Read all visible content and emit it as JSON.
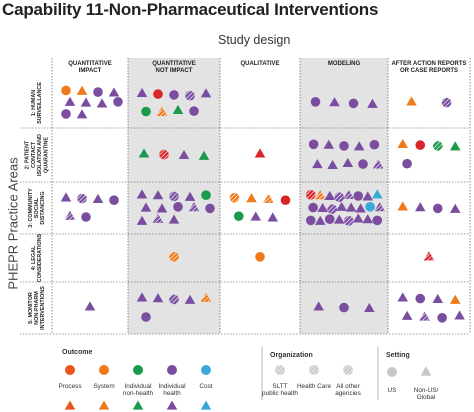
{
  "title": "Capability 11-Non-Pharmaceutical Interventions",
  "subtitle": "Study design",
  "side_label": "PHEPR Practice Areas",
  "columns": [
    {
      "line1": "QUANTITATIVE",
      "line2": "IMPACT"
    },
    {
      "line1": "QUANTITATIVE",
      "line2": "NOT IMPACT"
    },
    {
      "line1": "QUALITATIVE",
      "line2": ""
    },
    {
      "line1": "MODELING",
      "line2": ""
    },
    {
      "line1": "AFTER ACTION REPORTS",
      "line2": "OR CASE REPORTS"
    }
  ],
  "rows": [
    {
      "lines": [
        "1: HUMAN",
        "SURVEILLANCE"
      ]
    },
    {
      "lines": [
        "2: PATIENT",
        "CONTACT",
        "ISOLATION AND",
        "QUARANTINE"
      ]
    },
    {
      "lines": [
        "3: COMMUNITY",
        "SOCIAL",
        "DISTANCING"
      ]
    },
    {
      "lines": [
        "4: LEGAL",
        "CONSIDERATIONS"
      ]
    },
    {
      "lines": [
        "5: MONITOR",
        "NON-PHARM",
        "INTERVENTIONS"
      ]
    }
  ],
  "legend": {
    "outcome_title": "Outcome",
    "outcomes": [
      {
        "label1": "Process",
        "label2": "",
        "color": "#e8551f"
      },
      {
        "label1": "System",
        "label2": "",
        "color": "#f07a1a"
      },
      {
        "label1": "Individual",
        "label2": "non-health",
        "color": "#1a9a4a"
      },
      {
        "label1": "Individual",
        "label2": "health",
        "color": "#7a4da0"
      },
      {
        "label1": "Cost",
        "label2": "",
        "color": "#3aa8d8"
      }
    ],
    "organization_title": "Organization",
    "organizations": [
      {
        "label1": "SLTT",
        "label2": "public health"
      },
      {
        "label1": "Health Care",
        "label2": ""
      },
      {
        "label1": "All other",
        "label2": "agencies"
      }
    ],
    "setting_title": "Setting",
    "settings": [
      {
        "label1": "US",
        "label2": ""
      },
      {
        "label1": "Non-US/",
        "label2": "Global"
      }
    ]
  },
  "colors": {
    "purple": "#7a4da0",
    "orange": "#f07a1a",
    "red": "#d9252a",
    "green": "#1a9a4a",
    "blue": "#3aa8d8",
    "gray": "#c8c8c8",
    "shaded_column": "#e3e3e3"
  },
  "cells": [
    {
      "row": 0,
      "col": 0,
      "marks": [
        [
          "c",
          "orange",
          "s"
        ],
        [
          "t",
          "orange",
          "s"
        ],
        [
          "c",
          "purple",
          "s"
        ],
        [
          "t",
          "purple",
          "s"
        ],
        [
          "t",
          "purple",
          "s"
        ],
        [
          "t",
          "purple",
          "s"
        ],
        [
          "t",
          "purple",
          "s"
        ],
        [
          "c",
          "purple",
          "s"
        ],
        [
          "c",
          "purple",
          "s"
        ],
        [
          "t",
          "purple",
          "s"
        ]
      ]
    },
    {
      "row": 0,
      "col": 1,
      "marks": [
        [
          "t",
          "purple",
          "s"
        ],
        [
          "c",
          "red",
          "s"
        ],
        [
          "c",
          "purple",
          "s"
        ],
        [
          "c",
          "purple",
          "h"
        ],
        [
          "t",
          "purple",
          "s"
        ],
        [
          "c",
          "green",
          "s"
        ],
        [
          "t",
          "orange",
          "h"
        ],
        [
          "t",
          "green",
          "s"
        ],
        [
          "c",
          "purple",
          "s"
        ]
      ]
    },
    {
      "row": 0,
      "col": 3,
      "marks": [
        [
          "c",
          "purple",
          "s"
        ],
        [
          "t",
          "purple",
          "s"
        ],
        [
          "c",
          "purple",
          "s"
        ],
        [
          "t",
          "purple",
          "s"
        ]
      ]
    },
    {
      "row": 0,
      "col": 4,
      "marks": [
        [
          "t",
          "orange",
          "s"
        ],
        [
          "c",
          "purple",
          "h"
        ]
      ]
    },
    {
      "row": 1,
      "col": 1,
      "marks": [
        [
          "t",
          "green",
          "s"
        ],
        [
          "c",
          "red",
          "h"
        ],
        [
          "t",
          "purple",
          "s"
        ],
        [
          "t",
          "green",
          "s"
        ]
      ]
    },
    {
      "row": 1,
      "col": 2,
      "marks": [
        [
          "t",
          "red",
          "s"
        ]
      ]
    },
    {
      "row": 1,
      "col": 3,
      "marks": [
        [
          "c",
          "purple",
          "s"
        ],
        [
          "t",
          "purple",
          "s"
        ],
        [
          "c",
          "purple",
          "s"
        ],
        [
          "t",
          "purple",
          "s"
        ],
        [
          "c",
          "purple",
          "s"
        ],
        [
          "t",
          "purple",
          "s"
        ],
        [
          "t",
          "purple",
          "s"
        ],
        [
          "t",
          "purple",
          "s"
        ],
        [
          "c",
          "purple",
          "s"
        ],
        [
          "t",
          "purple",
          "h"
        ]
      ]
    },
    {
      "row": 1,
      "col": 4,
      "marks": [
        [
          "t",
          "orange",
          "s"
        ],
        [
          "c",
          "red",
          "s"
        ],
        [
          "c",
          "green",
          "h"
        ],
        [
          "t",
          "green",
          "s"
        ],
        [
          "c",
          "purple",
          "s"
        ]
      ]
    },
    {
      "row": 2,
      "col": 0,
      "marks": [
        [
          "t",
          "purple",
          "s"
        ],
        [
          "c",
          "purple",
          "h"
        ],
        [
          "t",
          "purple",
          "s"
        ],
        [
          "c",
          "purple",
          "s"
        ],
        [
          "t",
          "purple",
          "h"
        ],
        [
          "c",
          "purple",
          "s"
        ]
      ]
    },
    {
      "row": 2,
      "col": 1,
      "marks": [
        [
          "t",
          "purple",
          "s"
        ],
        [
          "t",
          "purple",
          "s"
        ],
        [
          "c",
          "purple",
          "h"
        ],
        [
          "t",
          "purple",
          "s"
        ],
        [
          "c",
          "green",
          "s"
        ],
        [
          "t",
          "purple",
          "s"
        ],
        [
          "t",
          "purple",
          "s"
        ],
        [
          "c",
          "purple",
          "s"
        ],
        [
          "t",
          "purple",
          "h"
        ],
        [
          "c",
          "purple",
          "s"
        ],
        [
          "t",
          "purple",
          "s"
        ],
        [
          "t",
          "purple",
          "h"
        ],
        [
          "t",
          "purple",
          "s"
        ]
      ]
    },
    {
      "row": 2,
      "col": 2,
      "marks": [
        [
          "c",
          "orange",
          "h"
        ],
        [
          "t",
          "orange",
          "s"
        ],
        [
          "t",
          "orange",
          "h"
        ],
        [
          "c",
          "red",
          "s"
        ],
        [
          "c",
          "green",
          "s"
        ],
        [
          "t",
          "purple",
          "s"
        ],
        [
          "t",
          "purple",
          "s"
        ]
      ]
    },
    {
      "row": 2,
      "col": 3,
      "marks": [
        [
          "c",
          "red",
          "h"
        ],
        [
          "t",
          "orange",
          "h"
        ],
        [
          "t",
          "purple",
          "s"
        ],
        [
          "c",
          "purple",
          "h"
        ],
        [
          "t",
          "purple",
          "h"
        ],
        [
          "c",
          "purple",
          "s"
        ],
        [
          "t",
          "purple",
          "s"
        ],
        [
          "t",
          "blue",
          "s"
        ],
        [
          "c",
          "purple",
          "s"
        ],
        [
          "t",
          "purple",
          "s"
        ],
        [
          "c",
          "purple",
          "h"
        ],
        [
          "t",
          "purple",
          "s"
        ],
        [
          "t",
          "purple",
          "s"
        ],
        [
          "t",
          "purple",
          "s"
        ],
        [
          "c",
          "blue",
          "s"
        ],
        [
          "t",
          "purple",
          "h"
        ],
        [
          "c",
          "purple",
          "s"
        ],
        [
          "t",
          "purple",
          "s"
        ],
        [
          "c",
          "purple",
          "s"
        ],
        [
          "t",
          "purple",
          "s"
        ],
        [
          "c",
          "purple",
          "h"
        ],
        [
          "t",
          "purple",
          "s"
        ],
        [
          "t",
          "purple",
          "s"
        ],
        [
          "c",
          "purple",
          "s"
        ]
      ]
    },
    {
      "row": 2,
      "col": 4,
      "marks": [
        [
          "t",
          "orange",
          "s"
        ],
        [
          "t",
          "purple",
          "s"
        ],
        [
          "c",
          "purple",
          "s"
        ],
        [
          "t",
          "purple",
          "s"
        ]
      ]
    },
    {
      "row": 3,
      "col": 1,
      "marks": [
        [
          "c",
          "orange",
          "h"
        ]
      ]
    },
    {
      "row": 3,
      "col": 2,
      "marks": [
        [
          "c",
          "orange",
          "s"
        ]
      ]
    },
    {
      "row": 3,
      "col": 4,
      "marks": [
        [
          "t",
          "red",
          "h"
        ]
      ]
    },
    {
      "row": 4,
      "col": 0,
      "marks": [
        [
          "t",
          "purple",
          "s"
        ]
      ]
    },
    {
      "row": 4,
      "col": 1,
      "marks": [
        [
          "t",
          "purple",
          "s"
        ],
        [
          "t",
          "purple",
          "s"
        ],
        [
          "c",
          "purple",
          "h"
        ],
        [
          "t",
          "purple",
          "s"
        ],
        [
          "t",
          "orange",
          "h"
        ],
        [
          "c",
          "purple",
          "s"
        ]
      ]
    },
    {
      "row": 4,
      "col": 3,
      "marks": [
        [
          "t",
          "purple",
          "s"
        ],
        [
          "c",
          "purple",
          "s"
        ],
        [
          "t",
          "purple",
          "s"
        ]
      ]
    },
    {
      "row": 4,
      "col": 4,
      "marks": [
        [
          "t",
          "purple",
          "s"
        ],
        [
          "c",
          "purple",
          "s"
        ],
        [
          "t",
          "purple",
          "s"
        ],
        [
          "t",
          "orange",
          "s"
        ],
        [
          "t",
          "purple",
          "s"
        ],
        [
          "t",
          "purple",
          "h"
        ],
        [
          "c",
          "purple",
          "s"
        ],
        [
          "t",
          "purple",
          "s"
        ]
      ]
    }
  ]
}
